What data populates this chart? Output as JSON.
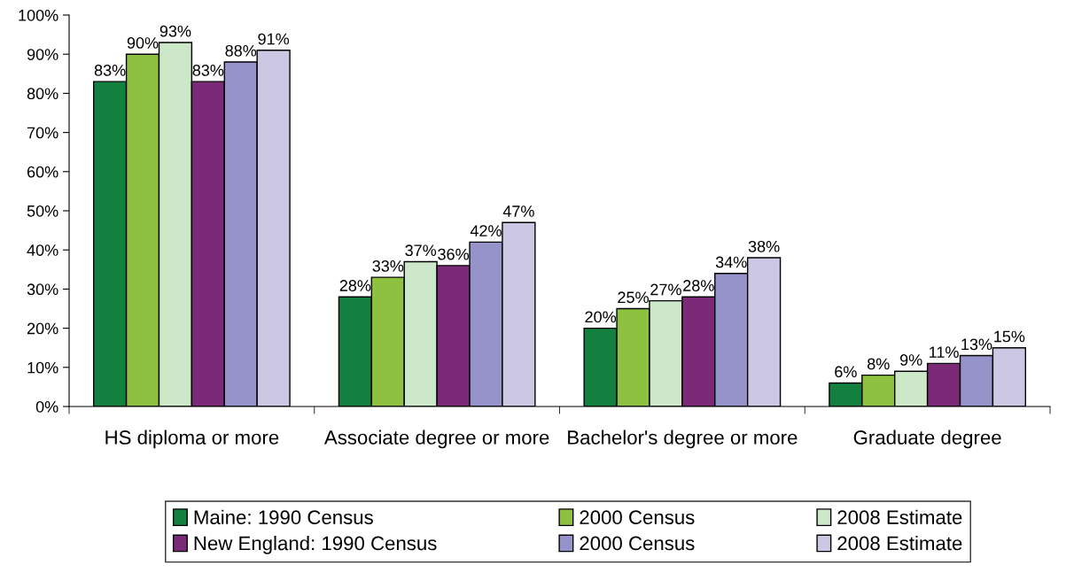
{
  "chart_data": {
    "type": "bar",
    "categories": [
      "HS diploma or more",
      "Associate degree or more",
      "Bachelor's degree or more",
      "Graduate degree"
    ],
    "series": [
      {
        "name": "Maine: 1990 Census",
        "color": "#138040",
        "values": [
          83,
          28,
          20,
          6
        ],
        "value_labels": [
          "83%",
          "28%",
          "20%",
          "6%"
        ]
      },
      {
        "name": "2000 Census",
        "color": "#8dc13f",
        "values": [
          90,
          33,
          25,
          8
        ],
        "value_labels": [
          "90%",
          "33%",
          "25%",
          "8%"
        ]
      },
      {
        "name": "2008 Estimate",
        "color": "#cde8c8",
        "values": [
          93,
          37,
          27,
          9
        ],
        "value_labels": [
          "93%",
          "37%",
          "27%",
          "9%"
        ]
      },
      {
        "name": "New England: 1990 Census",
        "color": "#7b2a78",
        "values": [
          83,
          36,
          28,
          11
        ],
        "value_labels": [
          "83%",
          "36%",
          "28%",
          "11%"
        ]
      },
      {
        "name": "2000 Census",
        "color": "#9593c9",
        "values": [
          88,
          42,
          34,
          13
        ],
        "value_labels": [
          "88%",
          "42%",
          "34%",
          "13%"
        ]
      },
      {
        "name": "2008 Estimate",
        "color": "#ccc8e4",
        "values": [
          91,
          47,
          38,
          15
        ],
        "value_labels": [
          "91%",
          "47%",
          "38%",
          "15%"
        ]
      }
    ],
    "ylim": [
      0,
      100
    ],
    "yticks": [
      {
        "value": 0,
        "label": "0%"
      },
      {
        "value": 10,
        "label": "10%"
      },
      {
        "value": 20,
        "label": "20%"
      },
      {
        "value": 30,
        "label": "30%"
      },
      {
        "value": 40,
        "label": "40%"
      },
      {
        "value": 50,
        "label": "50%"
      },
      {
        "value": 60,
        "label": "60%"
      },
      {
        "value": 70,
        "label": "70%"
      },
      {
        "value": 80,
        "label": "80%"
      },
      {
        "value": 90,
        "label": "90%"
      },
      {
        "value": 100,
        "label": "100%"
      }
    ],
    "grid": false,
    "legend": "bottom"
  }
}
